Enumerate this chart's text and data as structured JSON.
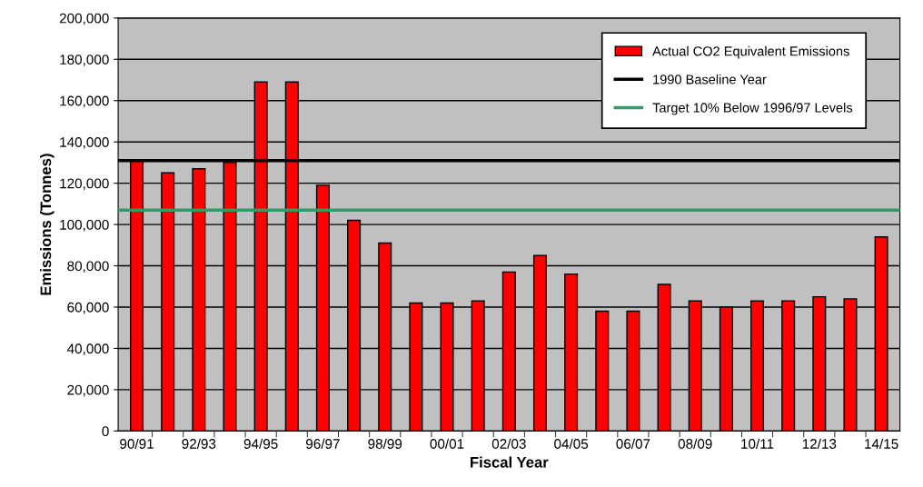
{
  "chart_data": {
    "type": "bar",
    "xlabel": "Fiscal Year",
    "ylabel": "Emissions (Tonnes)",
    "categories": [
      "90/91",
      null,
      "92/93",
      null,
      "94/95",
      null,
      "96/97",
      null,
      "98/99",
      null,
      "00/01",
      null,
      "02/03",
      null,
      "04/05",
      null,
      "06/07",
      null,
      "08/09",
      null,
      "10/11",
      null,
      "12/13",
      null,
      "14/15"
    ],
    "series": [
      {
        "name": "Actual CO2 Equivalent Emissions",
        "color": "#ff0000",
        "values": [
          131000,
          125000,
          127000,
          130000,
          169000,
          169000,
          119000,
          102000,
          91000,
          62000,
          62000,
          63000,
          77000,
          85000,
          76000,
          58000,
          58000,
          71000,
          63000,
          60000,
          63000,
          63000,
          65000,
          64000,
          94000
        ]
      }
    ],
    "ref_lines": [
      {
        "axis": "y",
        "value": 131000,
        "label": "1990 Baseline Year",
        "color": "#000000"
      },
      {
        "axis": "y",
        "value": 107000,
        "label": "Target 10% Below 1996/97 Levels",
        "color": "#339966"
      }
    ],
    "ylim": [
      0,
      200000
    ],
    "yticks": [
      {
        "value": 0,
        "label": "0"
      },
      {
        "value": 20000,
        "label": "20,000"
      },
      {
        "value": 40000,
        "label": "40,000"
      },
      {
        "value": 60000,
        "label": "60,000"
      },
      {
        "value": 80000,
        "label": "80,000"
      },
      {
        "value": 100000,
        "label": "100,000"
      },
      {
        "value": 120000,
        "label": "120,000"
      },
      {
        "value": 140000,
        "label": "140,000"
      },
      {
        "value": 160000,
        "label": "160,000"
      },
      {
        "value": 180000,
        "label": "180,000"
      },
      {
        "value": 200000,
        "label": "200,000"
      }
    ],
    "grid": "y",
    "legend": "top right"
  }
}
